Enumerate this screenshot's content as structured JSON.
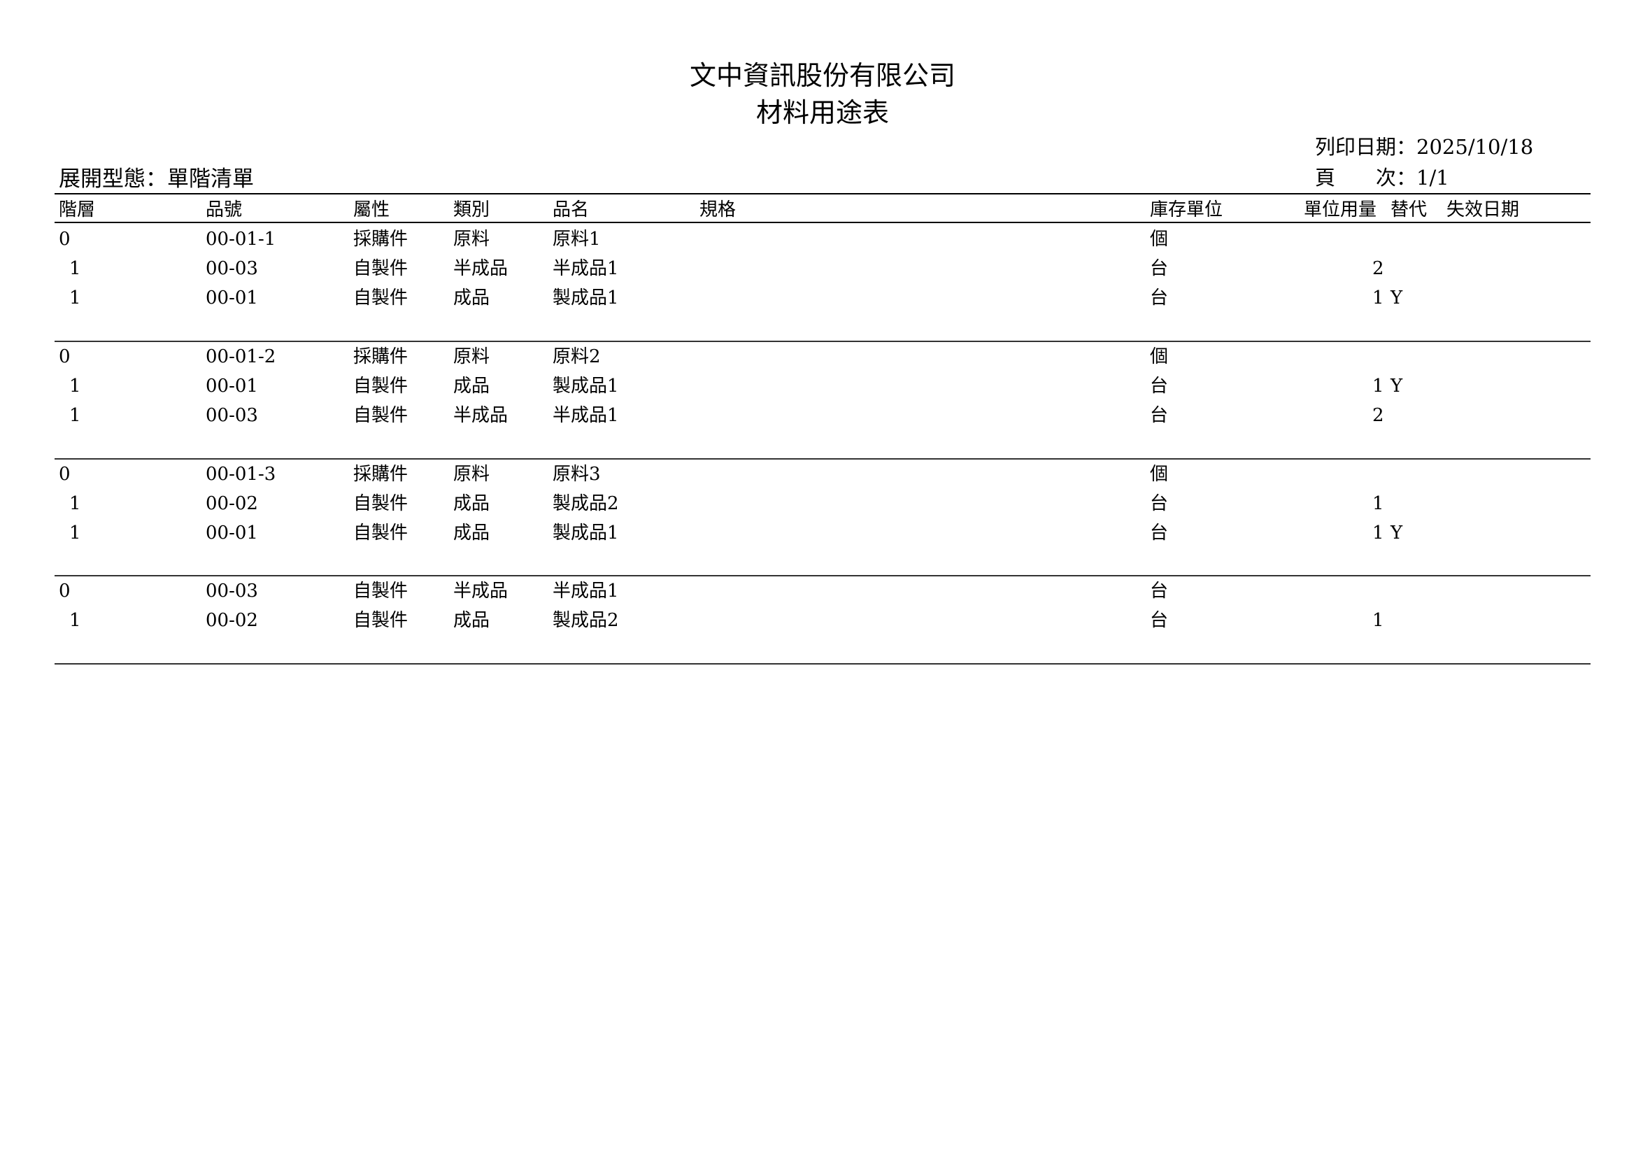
{
  "header": {
    "company": "文中資訊股份有限公司",
    "report_title": "材料用途表",
    "print_date_label": "列印日期：",
    "print_date": "2025/10/18",
    "page_label": "頁　　次：",
    "page": "1/1",
    "expand_type_label": "展開型態：",
    "expand_type": "單階清單"
  },
  "columns": [
    "階層",
    "品號",
    "屬性",
    "類別",
    "品名",
    "規格",
    "庫存單位",
    "單位用量",
    "替代",
    "失效日期"
  ],
  "groups": [
    {
      "rows": [
        {
          "level": "0",
          "item_no": "00-01-1",
          "attr": "採購件",
          "category": "原料",
          "name": "原料1",
          "spec": "",
          "unit": "個",
          "qty": "",
          "sub": "",
          "expiry": ""
        },
        {
          "level": "1",
          "item_no": "00-03",
          "attr": "自製件",
          "category": "半成品",
          "name": "半成品1",
          "spec": "",
          "unit": "台",
          "qty": "2",
          "sub": "",
          "expiry": ""
        },
        {
          "level": "1",
          "item_no": "00-01",
          "attr": "自製件",
          "category": "成品",
          "name": "製成品1",
          "spec": "",
          "unit": "台",
          "qty": "1",
          "sub": "Y",
          "expiry": ""
        }
      ]
    },
    {
      "rows": [
        {
          "level": "0",
          "item_no": "00-01-2",
          "attr": "採購件",
          "category": "原料",
          "name": "原料2",
          "spec": "",
          "unit": "個",
          "qty": "",
          "sub": "",
          "expiry": ""
        },
        {
          "level": "1",
          "item_no": "00-01",
          "attr": "自製件",
          "category": "成品",
          "name": "製成品1",
          "spec": "",
          "unit": "台",
          "qty": "1",
          "sub": "Y",
          "expiry": ""
        },
        {
          "level": "1",
          "item_no": "00-03",
          "attr": "自製件",
          "category": "半成品",
          "name": "半成品1",
          "spec": "",
          "unit": "台",
          "qty": "2",
          "sub": "",
          "expiry": ""
        }
      ]
    },
    {
      "rows": [
        {
          "level": "0",
          "item_no": "00-01-3",
          "attr": "採購件",
          "category": "原料",
          "name": "原料3",
          "spec": "",
          "unit": "個",
          "qty": "",
          "sub": "",
          "expiry": ""
        },
        {
          "level": "1",
          "item_no": "00-02",
          "attr": "自製件",
          "category": "成品",
          "name": "製成品2",
          "spec": "",
          "unit": "台",
          "qty": "1",
          "sub": "",
          "expiry": ""
        },
        {
          "level": "1",
          "item_no": "00-01",
          "attr": "自製件",
          "category": "成品",
          "name": "製成品1",
          "spec": "",
          "unit": "台",
          "qty": "1",
          "sub": "Y",
          "expiry": ""
        }
      ]
    },
    {
      "rows": [
        {
          "level": "0",
          "item_no": "00-03",
          "attr": "自製件",
          "category": "半成品",
          "name": "半成品1",
          "spec": "",
          "unit": "台",
          "qty": "",
          "sub": "",
          "expiry": ""
        },
        {
          "level": "1",
          "item_no": "00-02",
          "attr": "自製件",
          "category": "成品",
          "name": "製成品2",
          "spec": "",
          "unit": "台",
          "qty": "1",
          "sub": "",
          "expiry": ""
        }
      ]
    }
  ]
}
